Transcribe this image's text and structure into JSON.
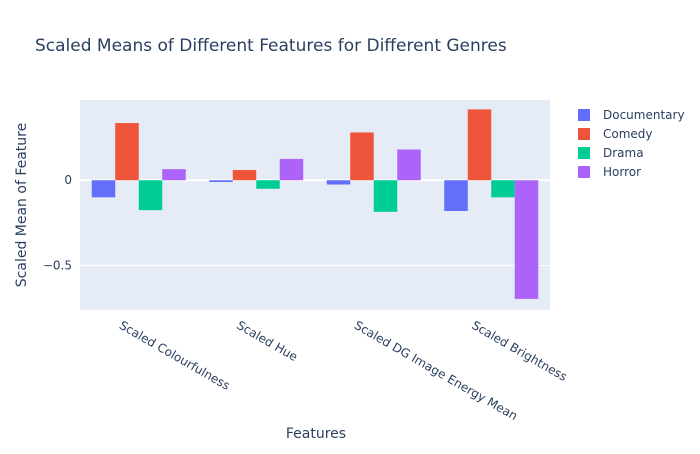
{
  "chart_data": {
    "type": "bar",
    "title": "Scaled Means of Different Features for Different Genres",
    "xlabel": "Features",
    "ylabel": "Scaled Mean of Feature",
    "categories": [
      "Scaled Colourfulness",
      "Scaled Hue",
      "Scaled DG Image Energy Mean",
      "Scaled Brightness"
    ],
    "series": [
      {
        "name": "Documentary",
        "color": "#636efa",
        "values": [
          -0.1,
          -0.01,
          -0.025,
          -0.18
        ]
      },
      {
        "name": "Comedy",
        "color": "#ef553b",
        "values": [
          0.335,
          0.06,
          0.28,
          0.415
        ]
      },
      {
        "name": "Drama",
        "color": "#00cc96",
        "values": [
          -0.175,
          -0.05,
          -0.185,
          -0.1
        ]
      },
      {
        "name": "Horror",
        "color": "#ab63fa",
        "values": [
          0.065,
          0.125,
          0.18,
          -0.695
        ]
      }
    ],
    "ylim": [
      -0.76,
      0.47
    ],
    "yticks": [
      0,
      -0.5
    ],
    "ytick_labels": [
      "0",
      "−0.5"
    ],
    "grid": true,
    "legend_position": "top-right",
    "plot_background": "#e5ecf6"
  }
}
